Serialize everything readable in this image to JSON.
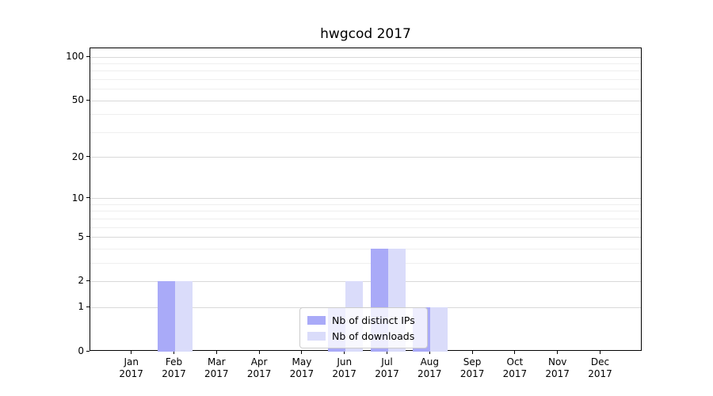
{
  "figure": {
    "title": "hwgcod 2017"
  },
  "chart_data": {
    "type": "bar",
    "title": "hwgcod 2017",
    "categories": [
      "Jan",
      "Feb",
      "Mar",
      "Apr",
      "May",
      "Jun",
      "Jul",
      "Aug",
      "Sep",
      "Oct",
      "Nov",
      "Dec"
    ],
    "year": "2017",
    "series": [
      {
        "name": "Nb of distinct IPs",
        "color": "#a9aaf8",
        "values": [
          0,
          2,
          0,
          0,
          0,
          1,
          4,
          1,
          0,
          0,
          0,
          0
        ]
      },
      {
        "name": "Nb of downloads",
        "color": "#dadcfa",
        "values": [
          0,
          2,
          0,
          0,
          0,
          2,
          4,
          1,
          0,
          0,
          0,
          0
        ]
      }
    ],
    "xlabel": "",
    "ylabel": "",
    "y_ticks": [
      0,
      1,
      2,
      5,
      10,
      20,
      50,
      100
    ],
    "y_minor_ticks": [
      3,
      4,
      6,
      7,
      8,
      9,
      30,
      40,
      60,
      70,
      80,
      90
    ],
    "scale": "log10(value+1)",
    "ylim": [
      0,
      114
    ],
    "grid": true,
    "legend": {
      "position": "lower center-right",
      "entries": [
        "Nb of distinct IPs",
        "Nb of downloads"
      ]
    },
    "colors": {
      "grid_major": "#d9d9d9",
      "grid_minor": "#efefef",
      "spine": "#000000",
      "legend_border": "#cccccc",
      "legend_background": "rgba(255,255,255,0.8)"
    }
  }
}
